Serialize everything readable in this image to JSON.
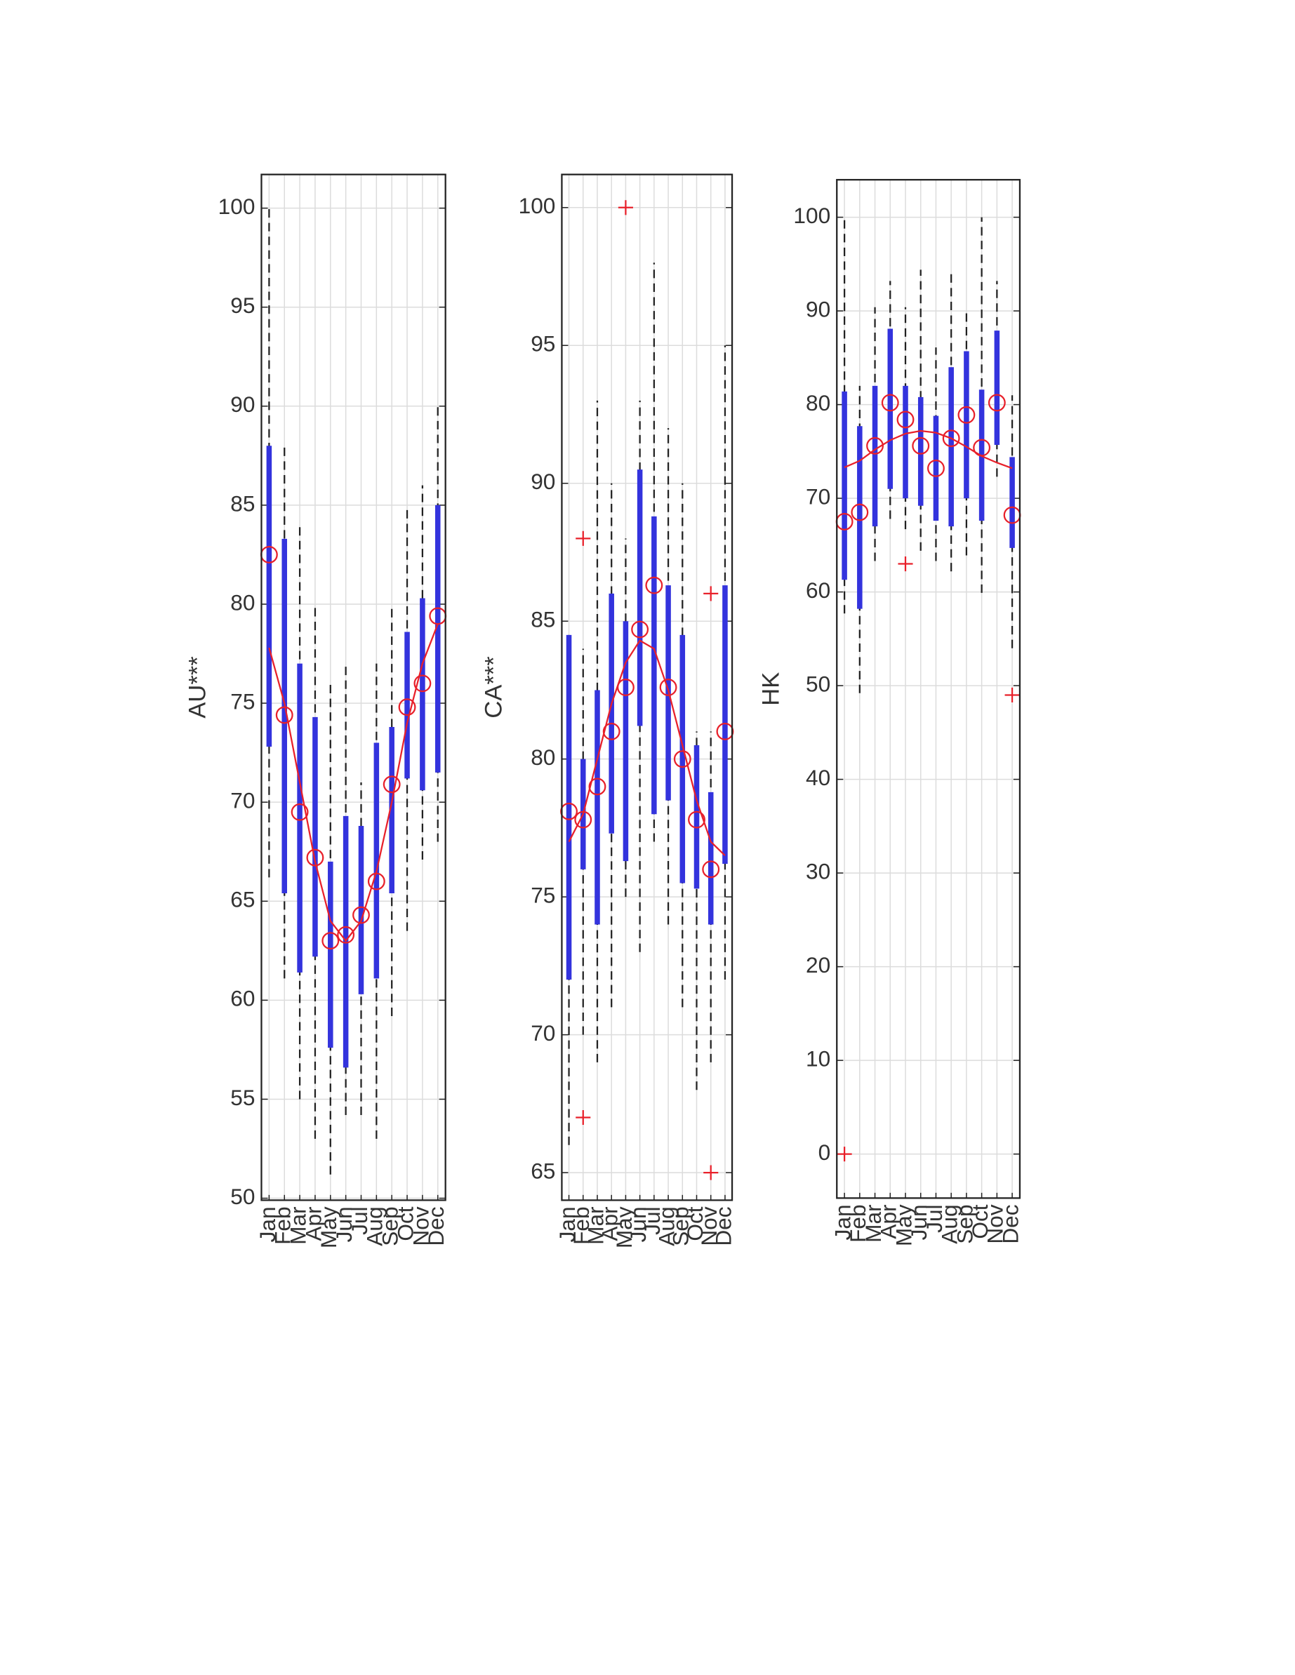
{
  "chart_data": [
    {
      "type": "box",
      "ylabel": "AU***",
      "categories": [
        "Jan",
        "Feb",
        "Mar",
        "Apr",
        "May",
        "Jun",
        "Jul",
        "Aug",
        "Sep",
        "Oct",
        "Nov",
        "Dec"
      ],
      "ylim": [
        49.9,
        101.7
      ],
      "yticks": [
        50,
        55,
        60,
        65,
        70,
        75,
        80,
        85,
        90,
        95,
        100
      ],
      "grid": true,
      "box_color": "#3333dd",
      "mean_color": "#e8202a",
      "whisker_color": "#222222",
      "whisker_low": [
        66.2,
        61.1,
        55,
        53,
        51.2,
        54.2,
        54.2,
        53,
        59.2,
        63.5,
        67.1,
        68
      ],
      "q1": [
        72.8,
        65.4,
        61.4,
        62.2,
        57.6,
        56.6,
        60.3,
        61.1,
        65.4,
        71.2,
        70.6,
        71.5
      ],
      "q3": [
        88,
        83.3,
        77,
        74.3,
        67,
        69.3,
        68.8,
        73,
        73.8,
        78.6,
        80.3,
        85
      ],
      "whisker_high": [
        100,
        88,
        84,
        80,
        76,
        77,
        71,
        77,
        80,
        85,
        86,
        90
      ],
      "mean": [
        82.5,
        74.4,
        69.5,
        67.2,
        63,
        63.3,
        64.3,
        66,
        70.9,
        74.8,
        76,
        79.4
      ],
      "fit": [
        77.8,
        75,
        71,
        67,
        64,
        63,
        64,
        66.5,
        70,
        74,
        77,
        79
      ],
      "outliers": [
        [],
        [],
        [],
        [],
        [],
        [],
        [],
        [],
        [],
        [],
        [],
        []
      ]
    },
    {
      "type": "box",
      "ylabel": "CA***",
      "categories": [
        "Jan",
        "Feb",
        "Mar",
        "Apr",
        "May",
        "Jun",
        "Jul",
        "Aug",
        "Sep",
        "Oct",
        "Nov",
        "Dec"
      ],
      "ylim": [
        64.0,
        101.2
      ],
      "yticks": [
        65,
        70,
        75,
        80,
        85,
        90,
        95,
        100
      ],
      "grid": true,
      "box_color": "#3333dd",
      "mean_color": "#e8202a",
      "whisker_color": "#222222",
      "whisker_low": [
        66,
        70,
        69,
        71,
        75,
        73,
        77,
        74,
        71,
        68,
        69,
        72
      ],
      "q1": [
        72,
        76,
        74,
        77.3,
        76.3,
        81.2,
        78,
        78.5,
        75.5,
        75.3,
        74,
        76.2
      ],
      "q3": [
        84.5,
        80,
        82.5,
        86,
        85,
        90.5,
        88.8,
        86.3,
        84.5,
        80.5,
        78.8,
        86.3
      ],
      "whisker_high": [
        84.5,
        84,
        93,
        90,
        88,
        93,
        98,
        92,
        90,
        81,
        81,
        95
      ],
      "mean": [
        78.1,
        77.8,
        79,
        81,
        82.6,
        84.7,
        86.3,
        82.6,
        80,
        77.8,
        76,
        81
      ],
      "fit": [
        77,
        78,
        80,
        82,
        83.5,
        84.3,
        84,
        82.5,
        80.5,
        78.5,
        77,
        76.5
      ],
      "outliers": [
        [],
        [
          88,
          67
        ],
        [],
        [],
        [
          100
        ],
        [],
        [],
        [],
        [],
        [],
        [
          86,
          65
        ],
        []
      ]
    },
    {
      "type": "box",
      "ylabel": "HK",
      "categories": [
        "Jan",
        "Feb",
        "Mar",
        "Apr",
        "May",
        "Jun",
        "Jul",
        "Aug",
        "Sep",
        "Oct",
        "Nov",
        "Dec"
      ],
      "ylim": [
        -4.7,
        104
      ],
      "yticks": [
        0,
        10,
        20,
        30,
        40,
        50,
        60,
        70,
        80,
        90,
        100
      ],
      "grid": true,
      "box_color": "#3333dd",
      "mean_color": "#e8202a",
      "whisker_color": "#222222",
      "whisker_low": [
        57.7,
        49.2,
        63.3,
        67.8,
        66.7,
        64.4,
        63.3,
        62.2,
        63.9,
        59.9,
        72.3,
        54
      ],
      "q1": [
        61.3,
        58.2,
        67,
        71,
        70,
        69.2,
        67.6,
        67,
        70,
        67.6,
        75.7,
        64.7
      ],
      "q3": [
        81.4,
        77.7,
        82,
        88.1,
        82,
        80.8,
        78.8,
        84,
        85.7,
        81.6,
        87.9,
        74.4
      ],
      "whisker_high": [
        100,
        82,
        90.4,
        93.2,
        90.4,
        94.4,
        86.1,
        94.4,
        90.2,
        100,
        93.2,
        81
      ],
      "mean": [
        67.5,
        68.5,
        75.6,
        80.2,
        78.4,
        75.6,
        73.2,
        76.4,
        78.9,
        75.4,
        80.2,
        68.2
      ],
      "fit": [
        73.3,
        74,
        75.2,
        76.2,
        76.9,
        77.2,
        77,
        76.4,
        75.5,
        74.5,
        73.8,
        73.2
      ],
      "outliers": [
        [
          0
        ],
        [],
        [],
        [],
        [
          63
        ],
        [],
        [],
        [],
        [],
        [],
        [],
        [
          49
        ]
      ]
    }
  ]
}
